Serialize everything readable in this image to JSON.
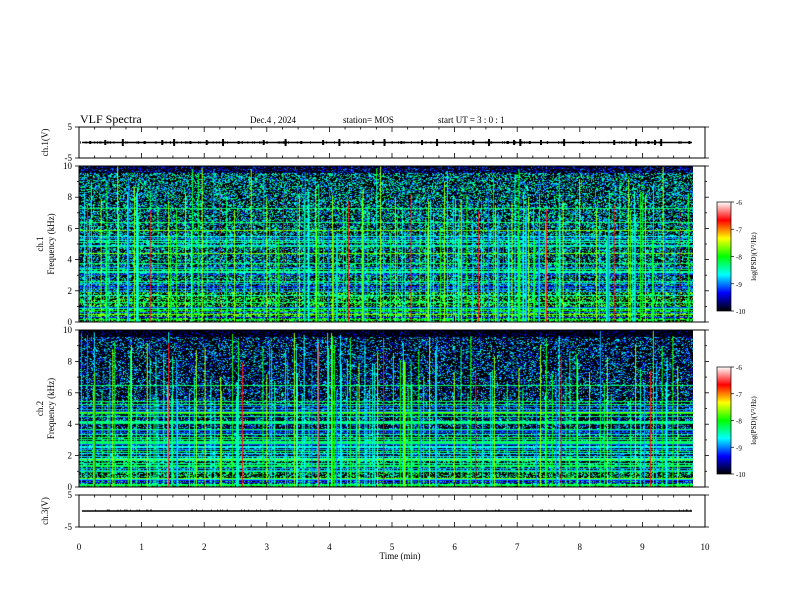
{
  "header": {
    "title": "VLF Spectra",
    "date": "Dec.4 , 2024",
    "station": "station= MOS",
    "start": "start UT =  3 : 0 : 1"
  },
  "colors": {
    "background": "#ffffff",
    "axis": "#000000",
    "spectrogram_floor": "#000000"
  },
  "colorbar": {
    "label": "log(PSD)(V²/Hz)",
    "ticks": [
      "-6",
      "-7",
      "-8",
      "-9",
      "-10"
    ],
    "stops": [
      "#ffffff",
      "#ff0000",
      "#ffff00",
      "#00ff00",
      "#00ffff",
      "#0000ff",
      "#000000"
    ]
  },
  "chart_data": [
    {
      "name": "ch1_waveform",
      "type": "line",
      "ylabel": "ch.1(V)",
      "ylim": [
        -5,
        5
      ],
      "yticks": [
        "5",
        "-5"
      ],
      "trace_level": 0,
      "burst_times_min": [
        0.18,
        0.42,
        0.7,
        1.05,
        1.33,
        1.52,
        1.78,
        2.04,
        2.3,
        2.55,
        2.95,
        3.3,
        3.55,
        3.9,
        4.16,
        4.45,
        4.7,
        4.88,
        5.15,
        5.48,
        5.72,
        6.0,
        6.3,
        6.55,
        6.85,
        6.95,
        7.05,
        7.2,
        7.38,
        7.75,
        8.05,
        8.55,
        8.9,
        9.1,
        9.2,
        9.3,
        9.75
      ]
    },
    {
      "name": "ch1_spectrogram",
      "type": "heatmap",
      "ylabel": "ch.1\nFrequency (kHz)",
      "xlim": [
        0,
        10
      ],
      "ylim": [
        0,
        10
      ],
      "yticks": [
        "10",
        "8",
        "6",
        "4",
        "2",
        "0"
      ],
      "value_range_logPSD": [
        -10,
        -6
      ],
      "strong_spikes_min": [
        0.12,
        0.35,
        0.62,
        0.9,
        1.15,
        1.45,
        1.72,
        2.0,
        2.28,
        2.52,
        2.8,
        3.05,
        3.32,
        3.58,
        3.85,
        4.12,
        4.38,
        4.62,
        4.9,
        5.15,
        5.4,
        5.68,
        5.95,
        6.22,
        6.5,
        6.78,
        7.05,
        7.32,
        7.6,
        7.88,
        8.15,
        8.42,
        8.7,
        8.95,
        9.22,
        9.5,
        9.78
      ],
      "bright_lines_khz": [
        0.5,
        0.9,
        1.3,
        1.7,
        2.2,
        2.6,
        3.1,
        3.4,
        3.8,
        4.4,
        4.9,
        5.5,
        5.9,
        6.4,
        7.3
      ]
    },
    {
      "name": "ch2_spectrogram",
      "type": "heatmap",
      "ylabel": "ch.2\nFrequency (kHz)",
      "xlim": [
        0,
        10
      ],
      "ylim": [
        0,
        10
      ],
      "yticks": [
        "10",
        "8",
        "6",
        "4",
        "2",
        "0"
      ],
      "value_range_logPSD": [
        -10,
        -6
      ],
      "strong_spikes_min": [
        0.25,
        0.55,
        0.85,
        1.1,
        1.45,
        1.9,
        2.05,
        2.3,
        2.65,
        3.05,
        3.5,
        3.55,
        3.9,
        4.1,
        4.55,
        4.85,
        4.95,
        5.3,
        5.7,
        6.1,
        6.45,
        6.75,
        7.15,
        7.5,
        7.85,
        8.3,
        8.6,
        9.05,
        9.3,
        9.75
      ],
      "bright_lines_khz": [
        0.6,
        1.0,
        1.4,
        1.8,
        2.3,
        2.8,
        3.2,
        3.7,
        4.2,
        4.8,
        5.3,
        6.5
      ]
    },
    {
      "name": "ch3_waveform",
      "type": "line",
      "ylabel": "ch.3(V)",
      "xlabel": "Time (min)",
      "xlim": [
        0,
        10
      ],
      "ylim": [
        -5,
        5
      ],
      "yticks": [
        "5",
        "-5"
      ],
      "xticks": [
        "0",
        "1",
        "2",
        "3",
        "4",
        "5",
        "6",
        "7",
        "8",
        "9",
        "10"
      ],
      "trace_level": 0
    }
  ]
}
